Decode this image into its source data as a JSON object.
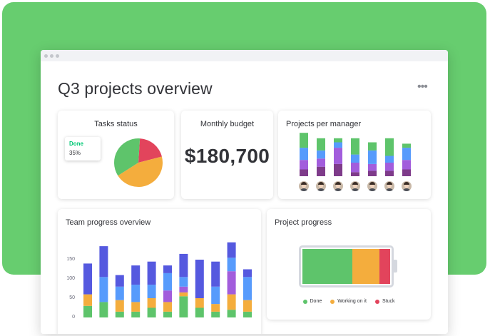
{
  "page": {
    "title": "Q3 projects overview",
    "more_menu": "•••"
  },
  "colors": {
    "background_green": "#67cd6f",
    "done": "#5ec46b",
    "working": "#f4ad3d",
    "stuck": "#e2445c",
    "blue": "#579bfc",
    "purple": "#a25ddc",
    "dark_purple": "#784bd1",
    "indigo": "#5559df",
    "plum": "#7e3b8a"
  },
  "tasks_status": {
    "title": "Tasks status",
    "tooltip_label": "Done",
    "tooltip_value": "35%",
    "slices": [
      {
        "label": "Done",
        "value": 35,
        "color": "#5ec46b"
      },
      {
        "label": "Working on it",
        "value": 45,
        "color": "#f4ad3d"
      },
      {
        "label": "Stuck",
        "value": 20,
        "color": "#e2445c"
      }
    ]
  },
  "monthly_budget": {
    "title": "Monthly budget",
    "value": "$180,700"
  },
  "projects_per_manager": {
    "title": "Projects per manager",
    "managers": [
      {
        "segments": [
          11,
          9,
          7,
          5
        ],
        "avatar": "avatar-icon"
      },
      {
        "segments": [
          9,
          6,
          6,
          7
        ],
        "avatar": "avatar-icon"
      },
      {
        "segments": [
          3,
          4,
          12,
          9
        ],
        "avatar": "avatar-icon"
      },
      {
        "segments": [
          12,
          6,
          7,
          3
        ],
        "avatar": "avatar-icon"
      },
      {
        "segments": [
          6,
          10,
          5,
          4
        ],
        "avatar": "avatar-icon"
      },
      {
        "segments": [
          13,
          5,
          6,
          4
        ],
        "avatar": "avatar-icon"
      },
      {
        "segments": [
          3,
          9,
          7,
          5
        ],
        "avatar": "avatar-icon"
      }
    ],
    "segment_colors": [
      "#5ec46b",
      "#579bfc",
      "#a25ddc",
      "#7e3b8a"
    ]
  },
  "team_progress": {
    "title": "Team progress overview",
    "y_ticks": [
      "150",
      "100",
      "50",
      "0"
    ],
    "ylim": [
      0,
      200
    ],
    "segment_colors": [
      "#5ec46b",
      "#f4ad3d",
      "#a25ddc",
      "#579bfc",
      "#5559df"
    ],
    "bars": [
      [
        30,
        30,
        0,
        0,
        80
      ],
      [
        40,
        0,
        0,
        65,
        80
      ],
      [
        15,
        30,
        0,
        35,
        30
      ],
      [
        15,
        25,
        0,
        45,
        50
      ],
      [
        25,
        25,
        0,
        35,
        60
      ],
      [
        15,
        25,
        30,
        45,
        20
      ],
      [
        55,
        10,
        15,
        25,
        60
      ],
      [
        25,
        25,
        0,
        0,
        100
      ],
      [
        15,
        20,
        0,
        45,
        65
      ],
      [
        20,
        40,
        60,
        35,
        40
      ],
      [
        15,
        30,
        0,
        60,
        20
      ]
    ]
  },
  "project_progress": {
    "title": "Project progress",
    "segments": [
      {
        "label": "Done",
        "value": 57,
        "color": "#5ec46b"
      },
      {
        "label": "Working on it",
        "value": 31,
        "color": "#f4ad3d"
      },
      {
        "label": "Stuck",
        "value": 12,
        "color": "#e2445c"
      }
    ]
  }
}
